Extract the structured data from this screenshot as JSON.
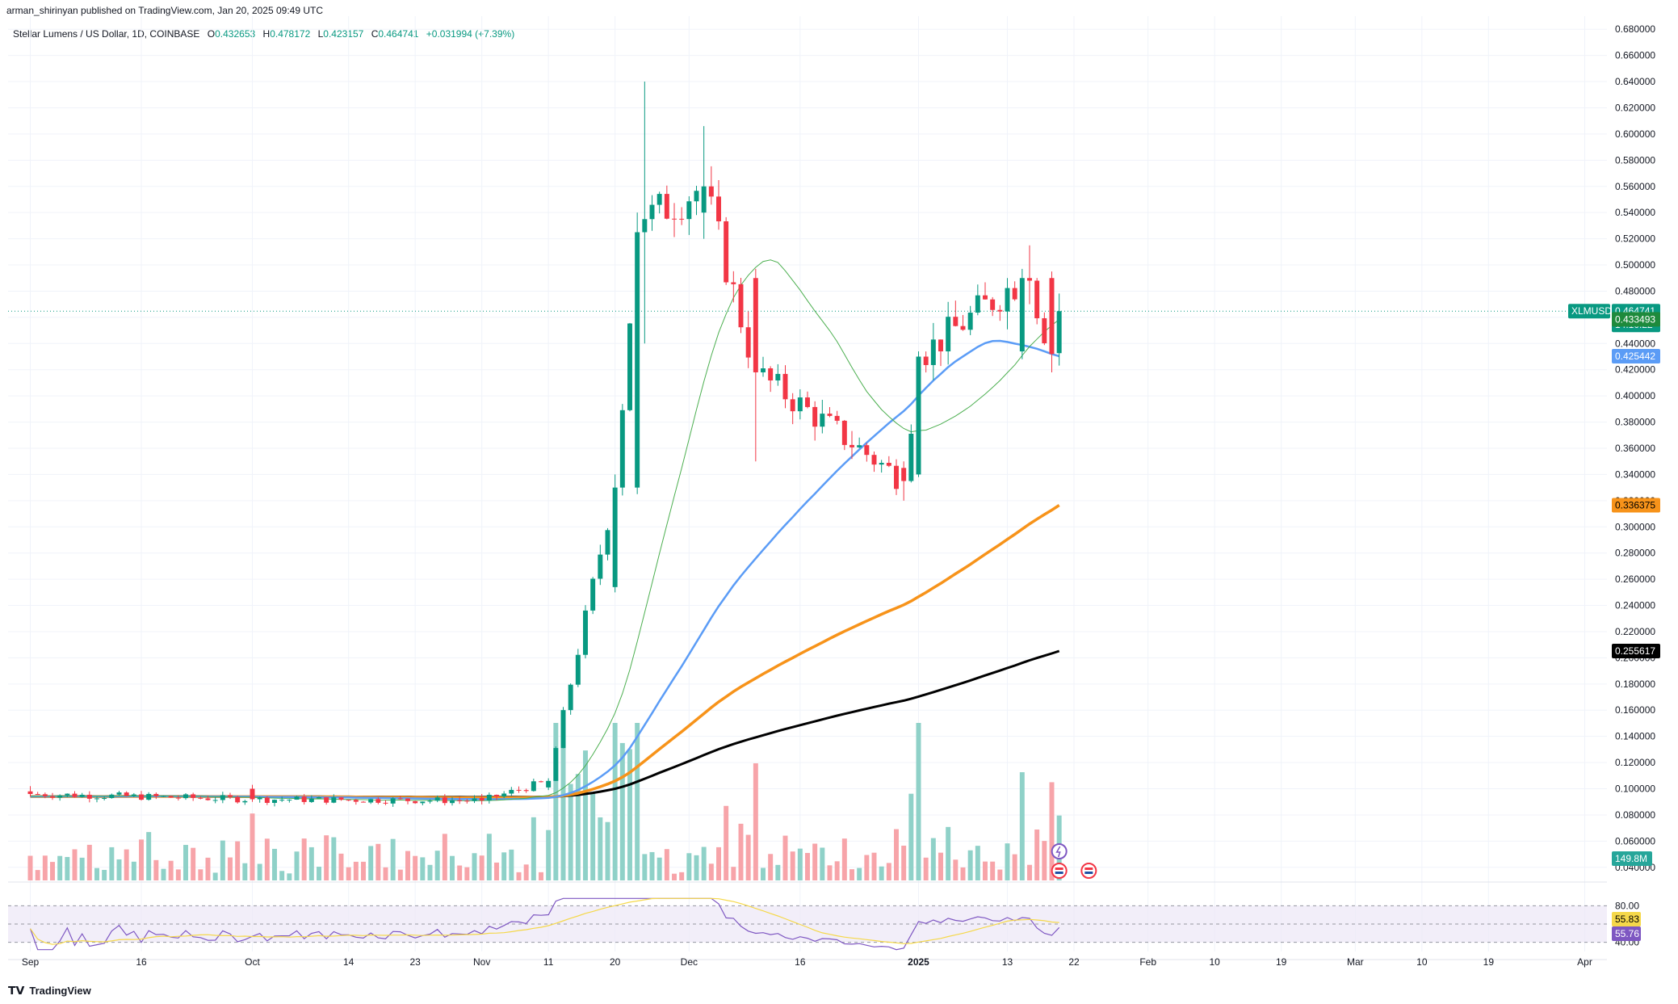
{
  "header": {
    "published": "arman_shirinyan published on TradingView.com, Jan 20, 2025 09:49 UTC"
  },
  "legend": {
    "symbol": "Stellar Lumens / US Dollar, 1D, COINBASE",
    "o_label": "O",
    "o": "0.432653",
    "h_label": "H",
    "h": "0.478172",
    "l_label": "L",
    "l": "0.423157",
    "c_label": "C",
    "c": "0.464741",
    "change": "+0.031994 (+7.39%)"
  },
  "colors": {
    "up": "#089981",
    "down": "#f23645",
    "ma_green": "#4caf50",
    "ma_blue": "#5b9cf6",
    "ma_orange": "#f7931a",
    "ma_black": "#000000",
    "vol_up": "#8fd1c8",
    "vol_down": "#f7a4a9",
    "rsi": "#7e57c2",
    "rsi_ma": "#f5d84a"
  },
  "tags": {
    "symbol": "XLMUSD",
    "price": "0.464741",
    "countdown": "14:10:22",
    "ma_green": "0.433493",
    "ma_blue": "0.425442",
    "ma_orange": "0.336375",
    "ma_black": "0.255617",
    "volume": "149.8M",
    "rsi_ma": "55.83",
    "rsi": "55.76"
  },
  "footer": {
    "brand": "TradingView"
  },
  "chart_data": {
    "type": "candlestick",
    "y_ticks": [
      "0.680000",
      "0.660000",
      "0.640000",
      "0.620000",
      "0.600000",
      "0.580000",
      "0.560000",
      "0.540000",
      "0.520000",
      "0.500000",
      "0.480000",
      "0.460000",
      "0.440000",
      "0.420000",
      "0.400000",
      "0.380000",
      "0.360000",
      "0.340000",
      "0.320000",
      "0.300000",
      "0.280000",
      "0.260000",
      "0.240000",
      "0.220000",
      "0.200000",
      "0.180000",
      "0.160000",
      "0.140000",
      "0.120000",
      "0.100000",
      "0.080000",
      "0.060000",
      "0.040000"
    ],
    "ylim": [
      0.03,
      0.69
    ],
    "rsi_ticks": [
      "80.00",
      "40.00"
    ],
    "rsi_range": [
      30,
      90
    ],
    "x_ticks": [
      "Sep",
      "16",
      "Oct",
      "14",
      "23",
      "Nov",
      "11",
      "20",
      "Dec",
      "16",
      "2025",
      "13",
      "22",
      "Feb",
      "10",
      "19",
      "Mar",
      "10",
      "19",
      "Apr"
    ],
    "x_tick_days": [
      0,
      15,
      30,
      43,
      52,
      61,
      70,
      79,
      89,
      104,
      120,
      132,
      141,
      151,
      160,
      169,
      179,
      188,
      197,
      210
    ],
    "day_range": [
      -3,
      213
    ],
    "last_day": 139,
    "key_ohlc": [
      {
        "day": 0,
        "o": 0.098,
        "h": 0.102,
        "l": 0.094,
        "c": 0.096
      },
      {
        "day": 30,
        "o": 0.1,
        "h": 0.103,
        "l": 0.09,
        "c": 0.092
      },
      {
        "day": 61,
        "o": 0.093,
        "h": 0.096,
        "l": 0.088,
        "c": 0.091
      },
      {
        "day": 70,
        "o": 0.101,
        "h": 0.108,
        "l": 0.099,
        "c": 0.106
      },
      {
        "day": 79,
        "o": 0.254,
        "h": 0.34,
        "l": 0.25,
        "c": 0.33
      },
      {
        "day": 82,
        "o": 0.33,
        "h": 0.54,
        "l": 0.325,
        "c": 0.525
      },
      {
        "day": 83,
        "o": 0.525,
        "h": 0.64,
        "l": 0.44,
        "c": 0.535
      },
      {
        "day": 91,
        "o": 0.54,
        "h": 0.606,
        "l": 0.52,
        "c": 0.56
      },
      {
        "day": 98,
        "o": 0.49,
        "h": 0.497,
        "l": 0.35,
        "c": 0.418
      },
      {
        "day": 118,
        "o": 0.345,
        "h": 0.35,
        "l": 0.32,
        "c": 0.335
      },
      {
        "day": 120,
        "o": 0.34,
        "h": 0.434,
        "l": 0.338,
        "c": 0.43
      },
      {
        "day": 134,
        "o": 0.434,
        "h": 0.497,
        "l": 0.428,
        "c": 0.49
      },
      {
        "day": 135,
        "o": 0.49,
        "h": 0.515,
        "l": 0.47,
        "c": 0.488
      },
      {
        "day": 138,
        "o": 0.49,
        "h": 0.495,
        "l": 0.418,
        "c": 0.432
      },
      {
        "day": 139,
        "o": 0.432653,
        "h": 0.478172,
        "l": 0.423157,
        "c": 0.464741
      }
    ]
  }
}
